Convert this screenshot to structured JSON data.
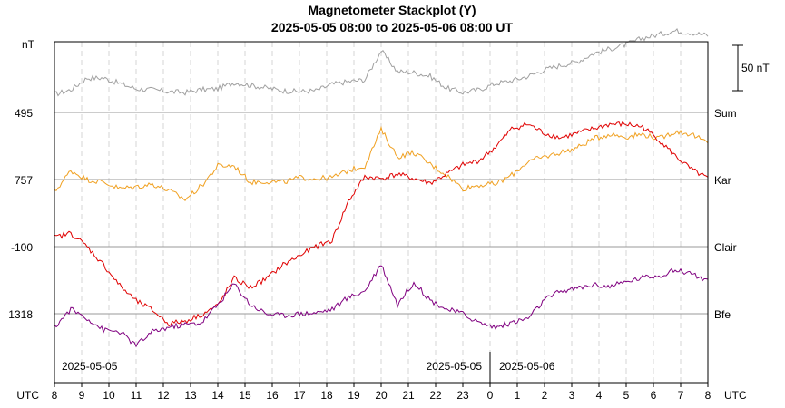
{
  "chart_data": {
    "type": "line",
    "title": "Magnetometer Stackplot (Y)",
    "subtitle": "2025-05-05 08:00 to 2025-05-06 08:00 UT",
    "y_unit_label": "nT",
    "x_unit_label_left": "UTC",
    "x_unit_label_right": "UTC",
    "x_ticks": [
      "8",
      "9",
      "10",
      "11",
      "12",
      "13",
      "14",
      "15",
      "16",
      "17",
      "18",
      "19",
      "20",
      "21",
      "22",
      "23",
      "0",
      "1",
      "2",
      "3",
      "4",
      "5",
      "6",
      "7",
      "8"
    ],
    "date_labels": [
      "2025-05-05",
      "2025-05-05",
      "2025-05-06"
    ],
    "scale_bar_label": "50 nT",
    "grid": true,
    "series": [
      {
        "name": "Sum",
        "baseline_label": "495",
        "color": "#a0a0a0",
        "values": [
          20,
          25,
          38,
          38,
          32,
          26,
          25,
          23,
          22,
          25,
          26,
          33,
          30,
          27,
          24,
          23,
          24,
          31,
          34,
          36,
          68,
          45,
          44,
          40,
          27,
          22,
          25,
          32,
          35,
          40,
          47,
          52,
          56,
          65,
          70,
          75,
          82,
          86,
          90,
          88,
          85
        ]
      },
      {
        "name": "Kar",
        "baseline_label": "757",
        "color": "#f0a020",
        "values": [
          -14,
          10,
          0,
          -3,
          -10,
          -8,
          -5,
          -12,
          -22,
          -7,
          15,
          15,
          -3,
          -2,
          -3,
          2,
          1,
          2,
          10,
          15,
          55,
          25,
          30,
          17,
          5,
          -10,
          -6,
          -5,
          5,
          20,
          25,
          30,
          35,
          45,
          50,
          47,
          50,
          45,
          53,
          50,
          40
        ]
      },
      {
        "name": "Clair",
        "baseline_label": "-100",
        "color": "#e00000",
        "values": [
          10,
          15,
          0,
          -20,
          -43,
          -60,
          -70,
          -85,
          -82,
          -75,
          -65,
          -35,
          -45,
          -35,
          -20,
          -10,
          0,
          7,
          50,
          77,
          75,
          80,
          75,
          70,
          80,
          90,
          95,
          110,
          130,
          135,
          125,
          120,
          125,
          130,
          135,
          135,
          132,
          118,
          100,
          85,
          75
        ]
      },
      {
        "name": "Bfe",
        "baseline_label": "1318",
        "color": "#800080",
        "values": [
          -15,
          5,
          -5,
          -18,
          -20,
          -35,
          -20,
          -15,
          -12,
          -10,
          10,
          33,
          10,
          0,
          -2,
          0,
          1,
          5,
          18,
          25,
          55,
          10,
          35,
          15,
          5,
          0,
          -10,
          -15,
          -10,
          -5,
          15,
          25,
          28,
          32,
          30,
          35,
          40,
          42,
          48,
          45,
          35
        ]
      }
    ],
    "points_per_hour": "every 36 minutes",
    "ylim_each_series_nT": [
      -130,
      150
    ]
  }
}
